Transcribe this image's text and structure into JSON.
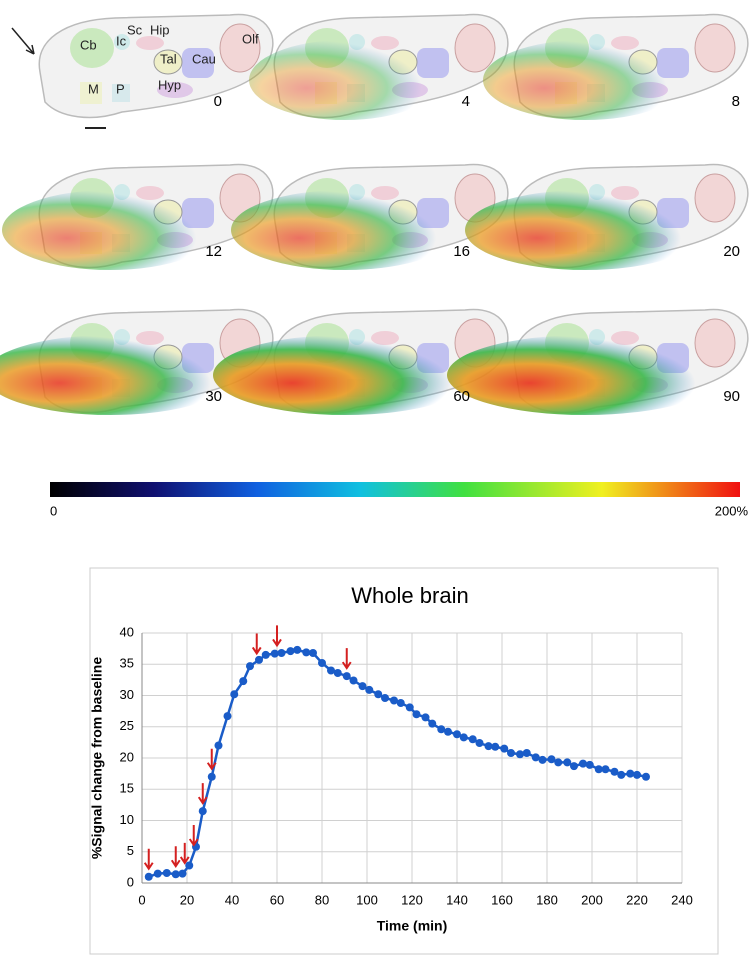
{
  "panels": {
    "times": [
      "0",
      "4",
      "8",
      "12",
      "16",
      "20",
      "30",
      "60",
      "90"
    ],
    "regions": [
      "Cb",
      "Ic",
      "Sc",
      "Hip",
      "Olf",
      "Tal",
      "Cau",
      "M",
      "P",
      "Hyp"
    ]
  },
  "colorbar": {
    "min_label": "0",
    "max_label": "200%"
  },
  "chart_data": {
    "type": "line",
    "title": "Whole brain",
    "x_label": "Time (min)",
    "y_label": "%Signal change from baseline",
    "x": [
      3,
      7,
      11,
      15,
      18,
      21,
      24,
      27,
      31,
      34,
      38,
      41,
      45,
      48,
      52,
      55,
      59,
      62,
      66,
      69,
      73,
      76,
      80,
      84,
      87,
      91,
      94,
      98,
      101,
      105,
      108,
      112,
      115,
      119,
      122,
      126,
      129,
      133,
      136,
      140,
      143,
      147,
      150,
      154,
      157,
      161,
      164,
      168,
      171,
      175,
      178,
      182,
      185,
      189,
      192,
      196,
      199,
      203,
      206,
      210,
      213,
      217,
      220,
      224
    ],
    "series": [
      {
        "color": "#1a5cc8",
        "values": [
          1.0,
          1.5,
          1.6,
          1.4,
          1.5,
          2.8,
          5.8,
          11.5,
          17,
          22,
          26.7,
          30.2,
          32.3,
          34.7,
          35.7,
          36.5,
          36.7,
          36.8,
          37.1,
          37.3,
          36.9,
          36.8,
          35.2,
          34.0,
          33.6,
          33.1,
          32.4,
          31.5,
          30.9,
          30.2,
          29.6,
          29.2,
          28.8,
          28.1,
          27.0,
          26.5,
          25.5,
          24.6,
          24.2,
          23.8,
          23.3,
          23.0,
          22.4,
          21.9,
          21.8,
          21.5,
          20.8,
          20.6,
          20.8,
          20.1,
          19.7,
          19.8,
          19.3,
          19.3,
          18.7,
          19.1,
          18.9,
          18.2,
          18.2,
          17.8,
          17.3,
          17.5,
          17.3,
          17.0
        ]
      }
    ],
    "arrows": [
      3,
      15,
      19,
      23,
      27,
      31,
      51,
      60,
      91
    ],
    "arrow_color": "#d42020",
    "xlim": [
      0,
      240
    ],
    "xticks": [
      0,
      20,
      40,
      60,
      80,
      100,
      120,
      140,
      160,
      180,
      200,
      220,
      240
    ],
    "ylim": [
      0,
      40
    ],
    "yticks": [
      0,
      5,
      10,
      15,
      20,
      25,
      30,
      35,
      40
    ],
    "grid": true
  }
}
